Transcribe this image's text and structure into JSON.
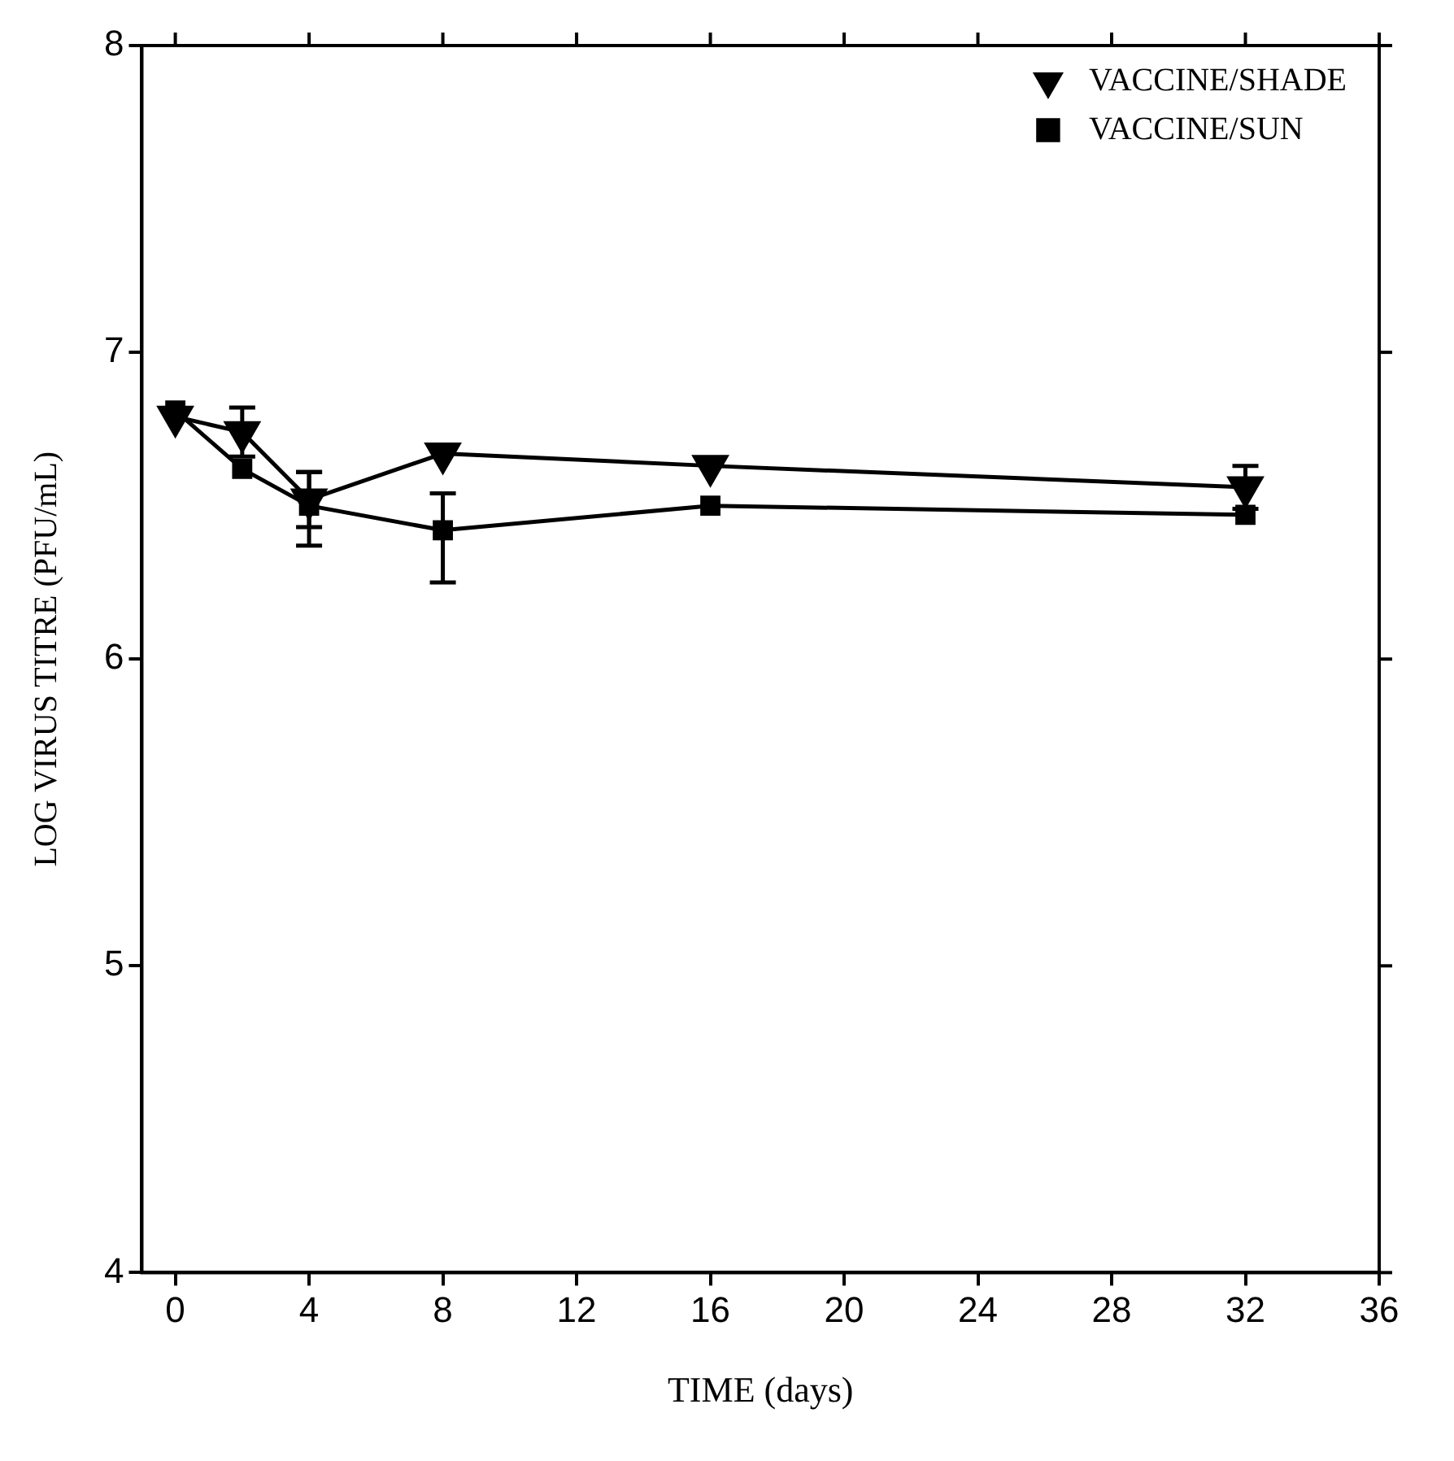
{
  "chart_data": {
    "type": "line",
    "xlabel": "TIME (days)",
    "ylabel": "LOG VIRUS TITRE (PFU/mL)",
    "x": [
      0,
      2,
      4,
      8,
      16,
      32
    ],
    "series": [
      {
        "name": "VACCINE/SHADE",
        "color": "#000000",
        "marker": "triangle",
        "values": [
          6.79,
          6.74,
          6.52,
          6.67,
          6.63,
          6.56
        ],
        "errors": [
          null,
          0.08,
          0.09,
          null,
          null,
          0.07
        ]
      },
      {
        "name": "VACCINE/SUN",
        "color": "#000000",
        "marker": "square",
        "values": [
          6.81,
          6.62,
          6.5,
          6.42,
          6.5,
          6.47
        ],
        "errors": [
          null,
          null,
          [
            6.37,
            6.61
          ],
          [
            6.25,
            6.54
          ],
          null,
          null
        ]
      }
    ],
    "xlim": [
      -1,
      36
    ],
    "xticks": [
      0,
      4,
      8,
      12,
      16,
      20,
      24,
      28,
      32,
      36
    ],
    "ylim": [
      4,
      8
    ],
    "yticks": [
      4,
      5,
      6,
      7,
      8
    ],
    "grid": false,
    "legend": "top right",
    "line_style": "solid"
  }
}
